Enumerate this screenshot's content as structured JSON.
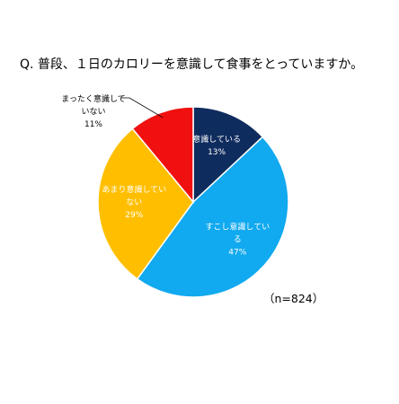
{
  "chart_data": {
    "type": "pie",
    "title": "Q. 普段、１日のカロリーを意識して食事をとっていますか。",
    "note": "（n=824）",
    "start_angle_deg": 0,
    "direction": "clockwise",
    "slices": [
      {
        "label_lines": [
          "意識している"
        ],
        "value_text": "13%",
        "value": 13,
        "color": "#0f2c5e",
        "label_color": "#ffffff"
      },
      {
        "label_lines": [
          "すこし意識してい",
          "る"
        ],
        "value_text": "47%",
        "value": 47,
        "color": "#11a9ef",
        "label_color": "#ffffff"
      },
      {
        "label_lines": [
          "あまり意識してい",
          "ない"
        ],
        "value_text": "29%",
        "value": 29,
        "color": "#ffbf00",
        "label_color": "#ffffff"
      },
      {
        "label_lines": [
          "まったく意識して",
          "いない"
        ],
        "value_text": "11%",
        "value": 11,
        "color": "#f01010",
        "label_color": "#000000",
        "outside": true
      }
    ],
    "colors": {
      "edge": "#ffffff",
      "leader": "#000000"
    }
  }
}
